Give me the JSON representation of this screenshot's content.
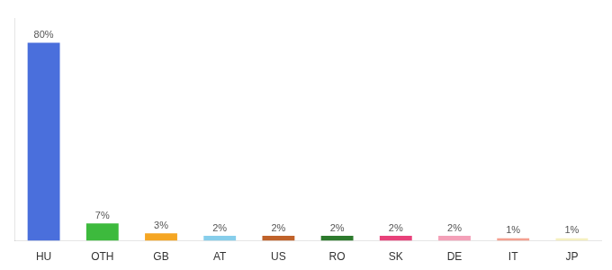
{
  "chart_data": {
    "type": "bar",
    "categories": [
      "HU",
      "OTH",
      "GB",
      "AT",
      "US",
      "RO",
      "SK",
      "DE",
      "IT",
      "JP"
    ],
    "values": [
      80,
      7,
      3,
      2,
      2,
      2,
      2,
      2,
      1,
      1
    ],
    "value_labels": [
      "80%",
      "7%",
      "3%",
      "2%",
      "2%",
      "2%",
      "2%",
      "2%",
      "1%",
      "1%"
    ],
    "colors": [
      "#4a6fdc",
      "#3dba3d",
      "#f5a623",
      "#87ceeb",
      "#c0622a",
      "#2d7a2d",
      "#e8417a",
      "#f4a0b8",
      "#f4a090",
      "#f5f0c0"
    ],
    "ylim": [
      0,
      90
    ],
    "grid": false,
    "data_labels": true,
    "tick_labels": "x"
  }
}
